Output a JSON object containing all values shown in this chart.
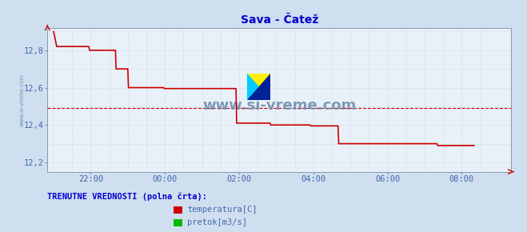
{
  "title": "Sava - Čatež",
  "title_color": "#0000cc",
  "title_fontsize": 10,
  "bg_color": "#d0dff0",
  "plot_bg_color": "#e8f0f8",
  "grid_color": "#c0cfe0",
  "x_tick_labels": [
    "22:00",
    "00:00",
    "02:00",
    "04:00",
    "06:00",
    "08:00"
  ],
  "x_tick_positions": [
    60,
    180,
    300,
    420,
    540,
    660
  ],
  "ylim_min": 12.15,
  "ylim_max": 12.92,
  "xlim_min": -10,
  "xlim_max": 740,
  "ytick_positions": [
    12.2,
    12.4,
    12.6,
    12.8
  ],
  "ytick_labels": [
    "12,2",
    "12,4",
    "12,6",
    "12,8"
  ],
  "watermark_text": "www.si-vreme.com",
  "watermark_color": "#7090b0",
  "watermark_fontsize": 13,
  "side_watermark_text": "www.si-vreme.com",
  "side_watermark_color": "#7090b0",
  "dashed_line_y": 12.49,
  "dashed_line_color": "#cc0000",
  "line_color": "#cc0000",
  "axis_color": "#8899aa",
  "tick_color": "#4466aa",
  "legend_title": "TRENUTNE VREDNOSTI (polna črta):",
  "legend_title_color": "#0000cc",
  "legend_items": [
    {
      "label": "temperatura[C]",
      "color": "#cc0000"
    },
    {
      "label": "pretok[m3/s]",
      "color": "#00bb00"
    }
  ],
  "temperature_data": [
    [
      0,
      12.9
    ],
    [
      5,
      12.82
    ],
    [
      57,
      12.82
    ],
    [
      58,
      12.8
    ],
    [
      100,
      12.8
    ],
    [
      101,
      12.7
    ],
    [
      120,
      12.7
    ],
    [
      121,
      12.6
    ],
    [
      178,
      12.6
    ],
    [
      179,
      12.595
    ],
    [
      295,
      12.595
    ],
    [
      296,
      12.41
    ],
    [
      350,
      12.41
    ],
    [
      351,
      12.4
    ],
    [
      415,
      12.4
    ],
    [
      416,
      12.395
    ],
    [
      460,
      12.395
    ],
    [
      461,
      12.3
    ],
    [
      620,
      12.3
    ],
    [
      621,
      12.29
    ],
    [
      680,
      12.29
    ]
  ],
  "logo_triangles": [
    {
      "points": [
        [
          0,
          1
        ],
        [
          0,
          0
        ],
        [
          1,
          1
        ]
      ],
      "color": "#ffdd00"
    },
    {
      "points": [
        [
          0,
          0
        ],
        [
          0.5,
          0.5
        ],
        [
          0,
          1
        ]
      ],
      "color": "#00ccff"
    },
    {
      "points": [
        [
          0,
          0
        ],
        [
          1,
          0
        ],
        [
          1,
          1
        ]
      ],
      "color": "#0033cc"
    }
  ]
}
